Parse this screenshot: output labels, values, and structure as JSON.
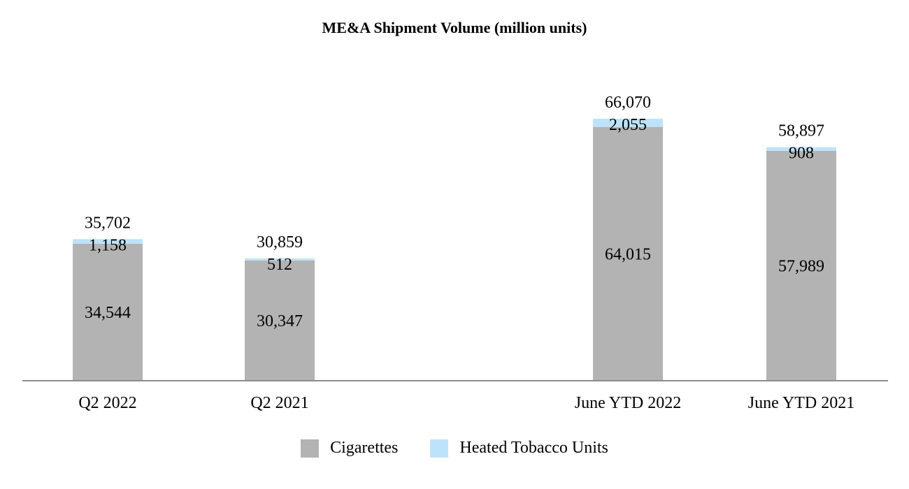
{
  "chart_data": {
    "type": "bar",
    "stacked": true,
    "title": "ME&A Shipment Volume (million units)",
    "categories": [
      "Q2 2022",
      "Q2 2021",
      "June YTD 2022",
      "June YTD 2021"
    ],
    "series": [
      {
        "name": "Cigarettes",
        "color": "#b3b3b3",
        "values": [
          34544,
          30347,
          64015,
          57989
        ],
        "labels": [
          "34,544",
          "30,347",
          "64,015",
          "57,989"
        ]
      },
      {
        "name": "Heated Tobacco Units",
        "color": "#bde3fb",
        "values": [
          1158,
          512,
          2055,
          908
        ],
        "labels": [
          "1,158",
          "512",
          "2,055",
          "908"
        ]
      }
    ],
    "totals": [
      35702,
      30859,
      66070,
      58897
    ],
    "total_labels": [
      "35,702",
      "30,859",
      "66,070",
      "58,897"
    ],
    "xlabel": "",
    "ylabel": "",
    "ylim": [
      0,
      66070
    ],
    "grid": false,
    "legend_position": "bottom-center",
    "axis_color": "#8c8c8c"
  }
}
